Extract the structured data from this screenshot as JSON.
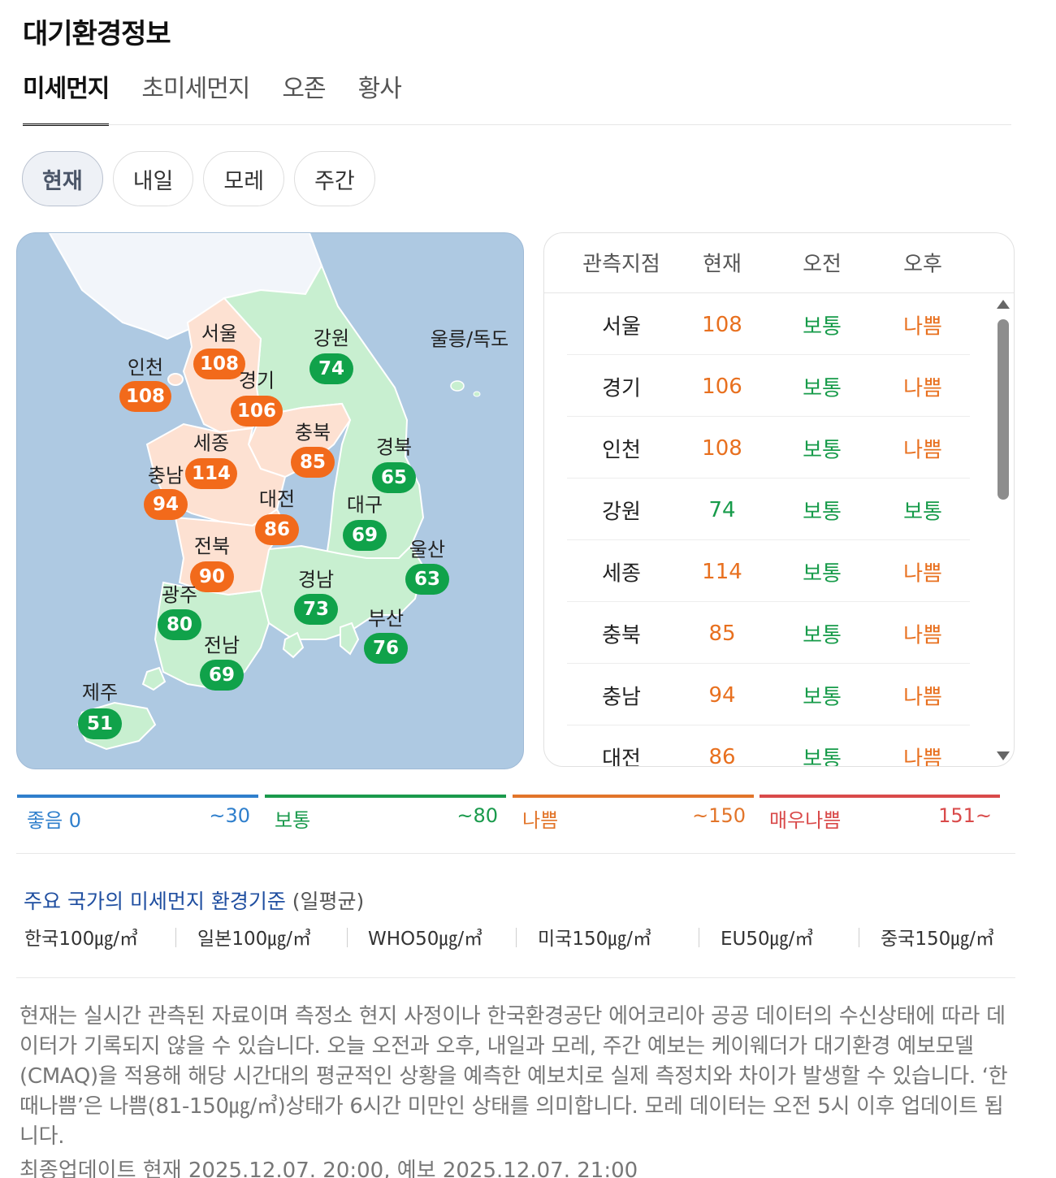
{
  "page_title": "대기환경정보",
  "tabs": [
    {
      "label": "미세먼지",
      "active": true
    },
    {
      "label": "초미세먼지",
      "active": false
    },
    {
      "label": "오존",
      "active": false
    },
    {
      "label": "황사",
      "active": false
    }
  ],
  "time_filters": [
    {
      "label": "현재",
      "active": true
    },
    {
      "label": "내일",
      "active": false
    },
    {
      "label": "모레",
      "active": false
    },
    {
      "label": "주간",
      "active": false
    }
  ],
  "map": {
    "regions": [
      {
        "name": "서울",
        "value": "108",
        "status": "bad"
      },
      {
        "name": "인천",
        "value": "108",
        "status": "bad"
      },
      {
        "name": "경기",
        "value": "106",
        "status": "bad"
      },
      {
        "name": "강원",
        "value": "74",
        "status": "good"
      },
      {
        "name": "울릉/독도",
        "value": "",
        "status": ""
      },
      {
        "name": "세종",
        "value": "114",
        "status": "bad"
      },
      {
        "name": "충북",
        "value": "85",
        "status": "bad"
      },
      {
        "name": "경북",
        "value": "65",
        "status": "good"
      },
      {
        "name": "충남",
        "value": "94",
        "status": "bad"
      },
      {
        "name": "대전",
        "value": "86",
        "status": "bad"
      },
      {
        "name": "대구",
        "value": "69",
        "status": "good"
      },
      {
        "name": "울산",
        "value": "63",
        "status": "good"
      },
      {
        "name": "전북",
        "value": "90",
        "status": "bad"
      },
      {
        "name": "경남",
        "value": "73",
        "status": "good"
      },
      {
        "name": "광주",
        "value": "80",
        "status": "good"
      },
      {
        "name": "부산",
        "value": "76",
        "status": "good"
      },
      {
        "name": "전남",
        "value": "69",
        "status": "good"
      },
      {
        "name": "제주",
        "value": "51",
        "status": "good"
      }
    ]
  },
  "table": {
    "headers": [
      "관측지점",
      "현재",
      "오전",
      "오후"
    ],
    "rows": [
      {
        "station": "서울",
        "now": "108",
        "am": "보통",
        "pm": "나쁨"
      },
      {
        "station": "경기",
        "now": "106",
        "am": "보통",
        "pm": "나쁨"
      },
      {
        "station": "인천",
        "now": "108",
        "am": "보통",
        "pm": "나쁨"
      },
      {
        "station": "강원",
        "now": "74",
        "am": "보통",
        "pm": "보통"
      },
      {
        "station": "세종",
        "now": "114",
        "am": "보통",
        "pm": "나쁨"
      },
      {
        "station": "충북",
        "now": "85",
        "am": "보통",
        "pm": "나쁨"
      },
      {
        "station": "충남",
        "now": "94",
        "am": "보통",
        "pm": "나쁨"
      },
      {
        "station": "대전",
        "now": "86",
        "am": "보통",
        "pm": "나쁨"
      }
    ]
  },
  "legend": [
    {
      "label": "좋음 0",
      "max": "~30",
      "color": "#2f7fcc"
    },
    {
      "label": "보통",
      "max": "~80",
      "color": "#1a9a4c"
    },
    {
      "label": "나쁨",
      "max": "~150",
      "color": "#e2752a"
    },
    {
      "label": "매우나쁨",
      "max": "151~",
      "color": "#d94a4a"
    }
  ],
  "standards": {
    "title": "주요 국가의 미세먼지 환경기준",
    "subtitle": "(일평균)",
    "items": [
      "한국100㎍/㎥",
      "일본100㎍/㎥",
      "WHO50㎍/㎥",
      "미국150㎍/㎥",
      "EU50㎍/㎥",
      "중국150㎍/㎥"
    ]
  },
  "note": "현재는 실시간 관측된 자료이며 측정소 현지 사정이나 한국환경공단 에어코리아 공공 데이터의 수신상태에 따라 데이터가 기록되지 않을 수 있습니다. 오늘 오전과 오후, 내일과 모레, 주간 예보는 케이웨더가 대기환경 예보모델(CMAQ)을 적용해 해당 시간대의 평균적인 상황을 예측한 예보치로 실제 측정치와 차이가 발생할 수 있습니다. ‘한때나쁨’은 나쁨(81-150㎍/㎥)상태가 6시간 미만인 상태를 의미합니다. 모레 데이터는 오전 5시 이후 업데이트 됩니다.",
  "last_updated": "최종업데이트 현재 2025.12.07. 20:00, 예보 2025.12.07. 21:00",
  "colors": {
    "bad": "#f26a1b",
    "good": "#10a24a",
    "bad_text": "#e8701f",
    "good_text": "#179b4a"
  }
}
